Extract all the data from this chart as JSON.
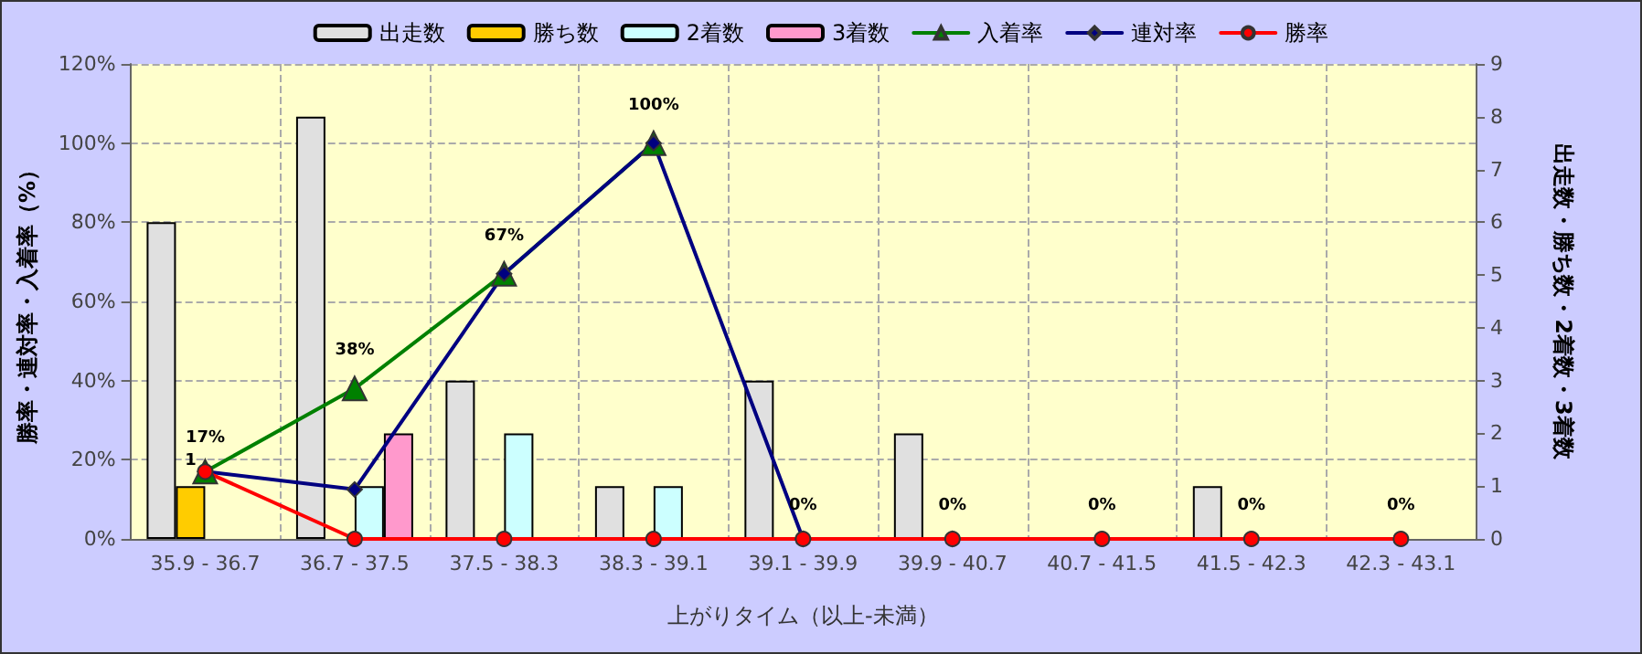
{
  "chart_data": {
    "type": "bar",
    "xlabel": "上がりタイム（以上-未満）",
    "ylabel": "勝率・連対率・入着率（%）",
    "y2label": "出走数・勝ち数・2着数・3着数",
    "categories": [
      "35.9 - 36.7",
      "36.7 - 37.5",
      "37.5 - 38.3",
      "38.3 - 39.1",
      "39.1 - 39.9",
      "39.9 - 40.7",
      "40.7 - 41.5",
      "41.5 - 42.3",
      "42.3 - 43.1"
    ],
    "series": [
      {
        "name": "出走数",
        "axis": "y2",
        "color": "#e0e0e0",
        "values": [
          6,
          8,
          3,
          1,
          3,
          2,
          0,
          1,
          0
        ]
      },
      {
        "name": "勝ち数",
        "axis": "y2",
        "color": "#ffcc00",
        "values": [
          1,
          0,
          0,
          0,
          0,
          0,
          0,
          0,
          0
        ],
        "value_labels": [
          "1",
          null,
          null,
          null,
          null,
          null,
          null,
          null,
          null
        ]
      },
      {
        "name": "2着数",
        "axis": "y2",
        "color": "#ccffff",
        "values": [
          0,
          1,
          2,
          1,
          0,
          0,
          0,
          0,
          0
        ]
      },
      {
        "name": "3着数",
        "axis": "y2",
        "color": "#ff99cc",
        "values": [
          0,
          2,
          0,
          0,
          0,
          0,
          0,
          0,
          0
        ]
      },
      {
        "name": "入着率",
        "type": "line",
        "marker": "triangle",
        "color": "#008000",
        "values": [
          17,
          38,
          67,
          100,
          null,
          null,
          null,
          null,
          null
        ],
        "value_labels": [
          null,
          "38%",
          "67%",
          "100%",
          null,
          null,
          null,
          null,
          null
        ]
      },
      {
        "name": "連対率",
        "type": "line",
        "marker": "diamond",
        "color": "#000080",
        "values": [
          17,
          12.5,
          67,
          100,
          0,
          0,
          null,
          null,
          null
        ]
      },
      {
        "name": "勝率",
        "type": "line",
        "marker": "circle",
        "color": "#ff0000",
        "values": [
          17,
          0,
          0,
          0,
          0,
          0,
          0,
          0,
          0
        ],
        "value_labels": [
          "17%",
          null,
          null,
          null,
          "0%",
          "0%",
          "0%",
          "0%",
          "0%"
        ]
      }
    ],
    "ylim": [
      0,
      120
    ],
    "yticks": [
      {
        "value": 0,
        "label": "0%"
      },
      {
        "value": 20,
        "label": "20%"
      },
      {
        "value": 40,
        "label": "40%"
      },
      {
        "value": 60,
        "label": "60%"
      },
      {
        "value": 80,
        "label": "80%"
      },
      {
        "value": 100,
        "label": "100%"
      },
      {
        "value": 120,
        "label": "120%"
      }
    ],
    "y2lim": [
      0,
      9
    ],
    "y2ticks": [
      0,
      1,
      2,
      3,
      4,
      5,
      6,
      7,
      8,
      9
    ],
    "grid": true,
    "legend": "top"
  }
}
